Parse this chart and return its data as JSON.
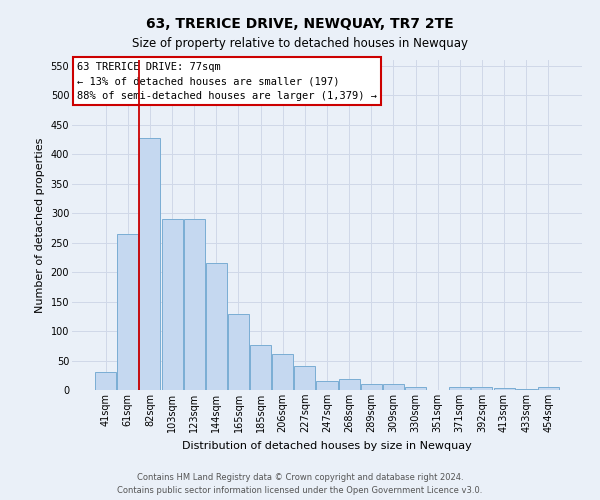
{
  "title": "63, TRERICE DRIVE, NEWQUAY, TR7 2TE",
  "subtitle": "Size of property relative to detached houses in Newquay",
  "xlabel": "Distribution of detached houses by size in Newquay",
  "ylabel": "Number of detached properties",
  "footer_line1": "Contains HM Land Registry data © Crown copyright and database right 2024.",
  "footer_line2": "Contains public sector information licensed under the Open Government Licence v3.0.",
  "categories": [
    "41sqm",
    "61sqm",
    "82sqm",
    "103sqm",
    "123sqm",
    "144sqm",
    "165sqm",
    "185sqm",
    "206sqm",
    "227sqm",
    "247sqm",
    "268sqm",
    "289sqm",
    "309sqm",
    "330sqm",
    "351sqm",
    "371sqm",
    "392sqm",
    "413sqm",
    "433sqm",
    "454sqm"
  ],
  "values": [
    30,
    265,
    428,
    291,
    290,
    215,
    129,
    77,
    61,
    40,
    15,
    18,
    10,
    10,
    5,
    0,
    5,
    5,
    3,
    2,
    5
  ],
  "bar_color": "#c5d8f0",
  "bar_edge_color": "#7aadd4",
  "grid_color": "#d0d8e8",
  "annotation_line1": "63 TRERICE DRIVE: 77sqm",
  "annotation_line2": "← 13% of detached houses are smaller (197)",
  "annotation_line3": "88% of semi-detached houses are larger (1,379) →",
  "annotation_box_color": "#ffffff",
  "annotation_box_edge": "#cc0000",
  "vline_color": "#cc0000",
  "vline_pos": 1.5,
  "ylim": [
    0,
    560
  ],
  "yticks": [
    0,
    50,
    100,
    150,
    200,
    250,
    300,
    350,
    400,
    450,
    500,
    550
  ],
  "bg_color": "#eaf0f8",
  "title_fontsize": 10,
  "subtitle_fontsize": 8.5,
  "tick_fontsize": 7,
  "ylabel_fontsize": 8,
  "xlabel_fontsize": 8,
  "footer_fontsize": 6,
  "annot_fontsize": 7.5
}
